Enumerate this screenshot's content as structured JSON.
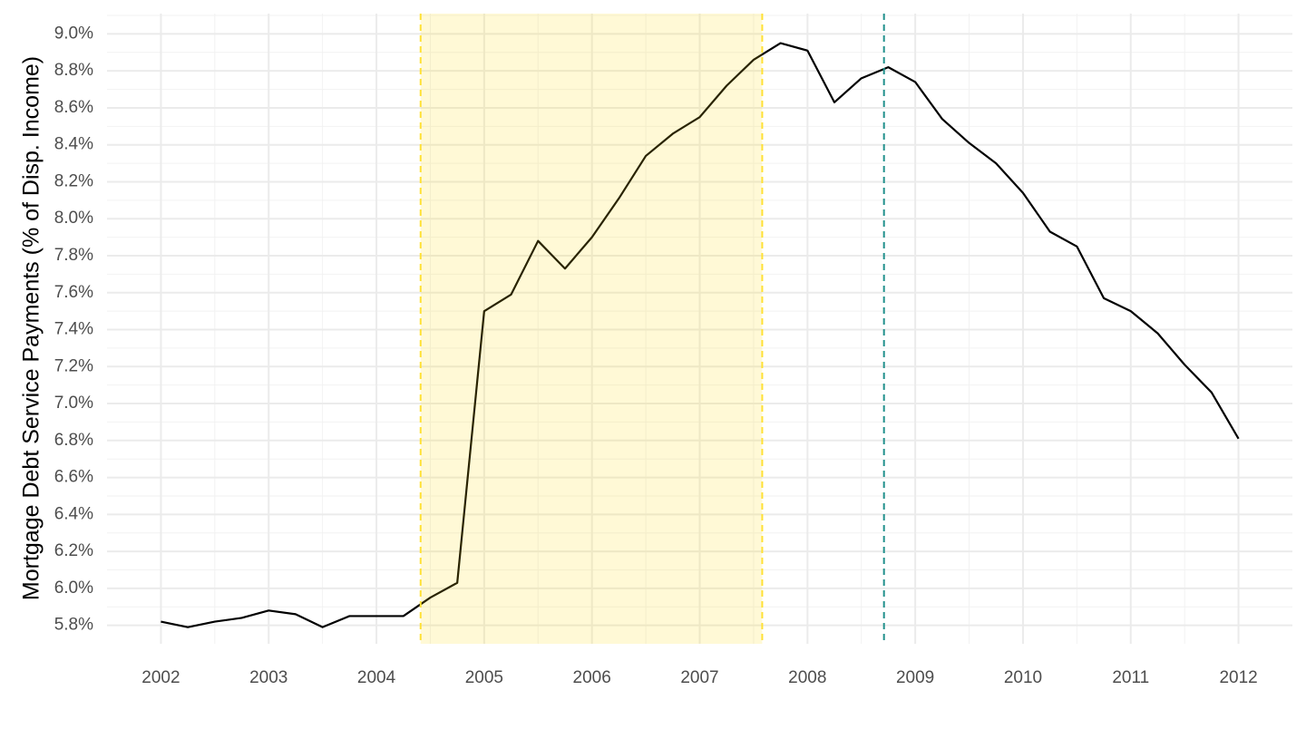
{
  "chart_data": {
    "type": "line",
    "y_label": "Mortgage Debt Service Payments (% of Disp. Income)",
    "x": [
      2002,
      2002.25,
      2002.5,
      2002.75,
      2003,
      2003.25,
      2003.5,
      2003.75,
      2004,
      2004.25,
      2004.5,
      2004.75,
      2005,
      2005.25,
      2005.5,
      2005.75,
      2006,
      2006.25,
      2006.5,
      2006.75,
      2007,
      2007.25,
      2007.5,
      2007.75,
      2008,
      2008.25,
      2008.5,
      2008.75,
      2009,
      2009.25,
      2009.5,
      2009.75,
      2010,
      2010.25,
      2010.5,
      2010.75,
      2011,
      2011.25,
      2011.5,
      2011.75,
      2012
    ],
    "values": [
      5.82,
      5.79,
      5.82,
      5.84,
      5.88,
      5.86,
      5.79,
      5.85,
      5.85,
      5.85,
      5.95,
      6.03,
      7.5,
      7.59,
      7.88,
      7.73,
      7.9,
      8.11,
      8.34,
      8.46,
      8.55,
      8.72,
      8.86,
      8.95,
      8.91,
      8.63,
      8.76,
      8.82,
      8.74,
      8.54,
      8.41,
      8.3,
      8.14,
      7.93,
      7.85,
      7.57,
      7.5,
      7.38,
      7.21,
      7.06,
      6.81
    ],
    "color": "#000000",
    "xlim": [
      2001.5,
      2012.5
    ],
    "ylim": [
      5.7,
      9.11
    ],
    "xticks": [
      2002,
      2003,
      2004,
      2005,
      2006,
      2007,
      2008,
      2009,
      2010,
      2011,
      2012
    ],
    "yticks": [
      {
        "value": 5.8,
        "label": "5.8%"
      },
      {
        "value": 6.0,
        "label": "6.0%"
      },
      {
        "value": 6.2,
        "label": "6.2%"
      },
      {
        "value": 6.4,
        "label": "6.4%"
      },
      {
        "value": 6.6,
        "label": "6.6%"
      },
      {
        "value": 6.8,
        "label": "6.8%"
      },
      {
        "value": 7.0,
        "label": "7.0%"
      },
      {
        "value": 7.2,
        "label": "7.2%"
      },
      {
        "value": 7.4,
        "label": "7.4%"
      },
      {
        "value": 7.6,
        "label": "7.6%"
      },
      {
        "value": 7.8,
        "label": "7.8%"
      },
      {
        "value": 8.0,
        "label": "8.0%"
      },
      {
        "value": 8.2,
        "label": "8.2%"
      },
      {
        "value": 8.4,
        "label": "8.4%"
      },
      {
        "value": 8.6,
        "label": "8.6%"
      },
      {
        "value": 8.8,
        "label": "8.8%"
      },
      {
        "value": 9.0,
        "label": "9.0%"
      }
    ],
    "grid": true,
    "shaded_region": {
      "x": [
        2004.41,
        2007.58
      ],
      "color": "#ffd700",
      "edge_color": "#ffe135"
    },
    "vline": {
      "x": 2008.71,
      "color": "#21908c"
    }
  }
}
